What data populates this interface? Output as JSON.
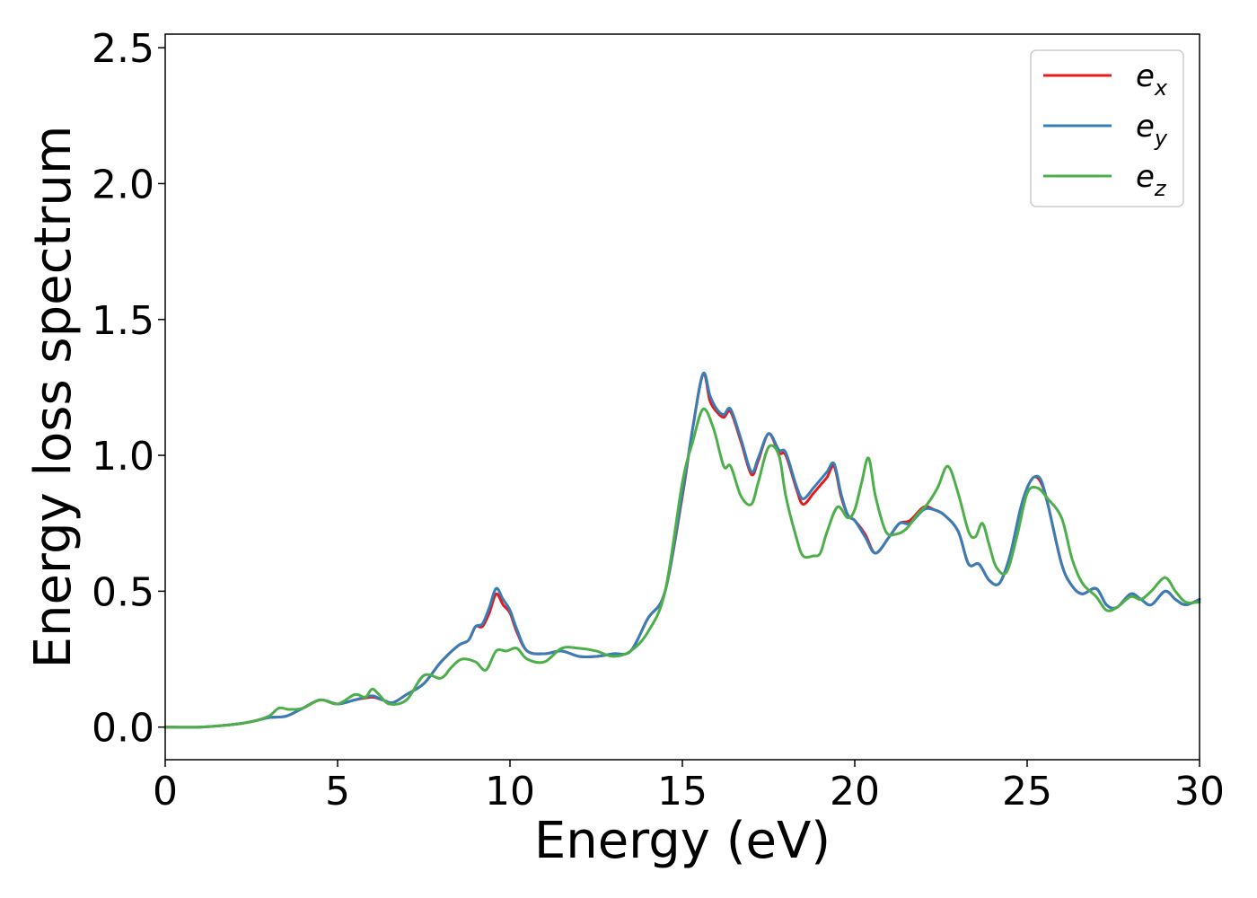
{
  "chart_data": {
    "type": "line",
    "title": "",
    "xlabel": "Energy (eV)",
    "ylabel": "Energy loss spectrum",
    "xlim": [
      0,
      30
    ],
    "ylim": [
      -0.12,
      2.55
    ],
    "xticks": [
      0,
      5,
      10,
      15,
      20,
      25,
      30
    ],
    "yticks": [
      0.0,
      0.5,
      1.0,
      1.5,
      2.0,
      2.5
    ],
    "xtick_labels": [
      "0",
      "5",
      "10",
      "15",
      "20",
      "25",
      "30"
    ],
    "ytick_labels": [
      "0.0",
      "0.5",
      "1.0",
      "1.5",
      "2.0",
      "2.5"
    ],
    "grid": false,
    "legend_position": "top-right",
    "series": [
      {
        "name": "e_x",
        "legend_base": "e",
        "legend_sub": "x",
        "color": "#e41a1c",
        "x": [
          0,
          1,
          2,
          2.5,
          3,
          3.5,
          4,
          4.5,
          5,
          5.5,
          6,
          6.3,
          6.6,
          7,
          7.5,
          8,
          8.5,
          8.8,
          9,
          9.2,
          9.4,
          9.6,
          9.8,
          10,
          10.2,
          10.5,
          11,
          11.5,
          12,
          12.5,
          13,
          13.5,
          14,
          14.5,
          15,
          15.3,
          15.6,
          15.8,
          16,
          16.2,
          16.4,
          16.7,
          17,
          17.2,
          17.5,
          17.8,
          18,
          18.3,
          18.5,
          18.8,
          19,
          19.2,
          19.4,
          19.6,
          19.8,
          20,
          20.3,
          20.6,
          21,
          21.3,
          21.6,
          22,
          22.3,
          22.6,
          23,
          23.3,
          23.6,
          23.9,
          24.2,
          24.5,
          24.8,
          25,
          25.2,
          25.4,
          25.6,
          26,
          26.3,
          26.6,
          27,
          27.3,
          27.6,
          28,
          28.3,
          28.6,
          29,
          29.3,
          29.6,
          30
        ],
        "y": [
          0,
          0,
          0.01,
          0.02,
          0.035,
          0.04,
          0.07,
          0.1,
          0.085,
          0.1,
          0.11,
          0.1,
          0.09,
          0.12,
          0.16,
          0.24,
          0.3,
          0.32,
          0.37,
          0.37,
          0.42,
          0.49,
          0.45,
          0.42,
          0.35,
          0.28,
          0.27,
          0.28,
          0.26,
          0.26,
          0.27,
          0.28,
          0.4,
          0.5,
          0.85,
          1.1,
          1.3,
          1.2,
          1.16,
          1.14,
          1.16,
          1.05,
          0.93,
          0.98,
          1.08,
          1.01,
          1.0,
          0.88,
          0.82,
          0.86,
          0.89,
          0.92,
          0.96,
          0.85,
          0.78,
          0.76,
          0.71,
          0.64,
          0.7,
          0.75,
          0.76,
          0.81,
          0.8,
          0.78,
          0.72,
          0.6,
          0.6,
          0.54,
          0.53,
          0.63,
          0.8,
          0.88,
          0.92,
          0.9,
          0.82,
          0.6,
          0.52,
          0.49,
          0.51,
          0.45,
          0.44,
          0.49,
          0.47,
          0.45,
          0.5,
          0.47,
          0.45,
          0.47
        ]
      },
      {
        "name": "e_y",
        "legend_base": "e",
        "legend_sub": "y",
        "color": "#377eb8",
        "x": [
          0,
          1,
          2,
          2.5,
          3,
          3.5,
          4,
          4.5,
          5,
          5.5,
          6,
          6.3,
          6.6,
          7,
          7.5,
          8,
          8.5,
          8.8,
          9,
          9.2,
          9.4,
          9.6,
          9.8,
          10,
          10.2,
          10.5,
          11,
          11.5,
          12,
          12.5,
          13,
          13.5,
          14,
          14.5,
          15,
          15.3,
          15.6,
          15.8,
          16,
          16.2,
          16.4,
          16.7,
          17,
          17.2,
          17.5,
          17.8,
          18,
          18.3,
          18.5,
          18.8,
          19,
          19.2,
          19.4,
          19.6,
          19.8,
          20,
          20.3,
          20.6,
          21,
          21.3,
          21.6,
          22,
          22.3,
          22.6,
          23,
          23.3,
          23.6,
          23.9,
          24.2,
          24.5,
          24.8,
          25,
          25.2,
          25.4,
          25.6,
          26,
          26.3,
          26.6,
          27,
          27.3,
          27.6,
          28,
          28.3,
          28.6,
          29,
          29.3,
          29.6,
          30
        ],
        "y": [
          0,
          0,
          0.01,
          0.02,
          0.035,
          0.04,
          0.07,
          0.1,
          0.085,
          0.1,
          0.115,
          0.1,
          0.09,
          0.12,
          0.16,
          0.24,
          0.3,
          0.32,
          0.37,
          0.38,
          0.44,
          0.51,
          0.47,
          0.43,
          0.36,
          0.28,
          0.27,
          0.28,
          0.26,
          0.26,
          0.27,
          0.28,
          0.4,
          0.5,
          0.86,
          1.1,
          1.3,
          1.22,
          1.17,
          1.15,
          1.17,
          1.06,
          0.94,
          0.99,
          1.08,
          1.02,
          1.01,
          0.89,
          0.84,
          0.88,
          0.91,
          0.94,
          0.97,
          0.86,
          0.78,
          0.76,
          0.7,
          0.64,
          0.7,
          0.75,
          0.75,
          0.8,
          0.8,
          0.78,
          0.72,
          0.6,
          0.6,
          0.54,
          0.53,
          0.63,
          0.8,
          0.88,
          0.92,
          0.91,
          0.82,
          0.6,
          0.52,
          0.49,
          0.51,
          0.45,
          0.44,
          0.49,
          0.47,
          0.45,
          0.5,
          0.47,
          0.45,
          0.47
        ]
      },
      {
        "name": "e_z",
        "legend_base": "e",
        "legend_sub": "z",
        "color": "#4daf4a",
        "x": [
          0,
          1,
          2,
          2.5,
          3,
          3.3,
          3.6,
          4,
          4.5,
          5,
          5.5,
          5.8,
          6,
          6.2,
          6.5,
          7,
          7.5,
          8,
          8.3,
          8.6,
          9,
          9.3,
          9.6,
          9.9,
          10.2,
          10.5,
          11,
          11.5,
          12,
          12.5,
          13,
          13.5,
          14,
          14.5,
          15,
          15.3,
          15.6,
          15.9,
          16.2,
          16.4,
          16.7,
          17,
          17.2,
          17.5,
          17.8,
          18,
          18.3,
          18.5,
          18.8,
          19,
          19.2,
          19.5,
          19.8,
          20,
          20.2,
          20.4,
          20.6,
          20.9,
          21.2,
          21.5,
          21.8,
          22.1,
          22.4,
          22.7,
          23,
          23.3,
          23.5,
          23.7,
          23.9,
          24.1,
          24.4,
          24.7,
          25,
          25.3,
          25.6,
          26,
          26.3,
          26.6,
          27,
          27.3,
          27.6,
          28,
          28.3,
          28.6,
          29,
          29.3,
          29.6,
          30
        ],
        "y": [
          0,
          0,
          0.01,
          0.02,
          0.04,
          0.07,
          0.065,
          0.07,
          0.1,
          0.085,
          0.12,
          0.11,
          0.14,
          0.12,
          0.085,
          0.1,
          0.19,
          0.18,
          0.22,
          0.25,
          0.24,
          0.21,
          0.28,
          0.28,
          0.29,
          0.25,
          0.24,
          0.29,
          0.29,
          0.28,
          0.26,
          0.28,
          0.35,
          0.5,
          0.9,
          1.05,
          1.17,
          1.1,
          0.96,
          0.96,
          0.85,
          0.82,
          0.9,
          1.03,
          1.0,
          0.85,
          0.7,
          0.63,
          0.63,
          0.64,
          0.72,
          0.81,
          0.77,
          0.8,
          0.9,
          0.99,
          0.85,
          0.72,
          0.71,
          0.73,
          0.78,
          0.82,
          0.88,
          0.96,
          0.86,
          0.72,
          0.7,
          0.75,
          0.67,
          0.59,
          0.57,
          0.7,
          0.86,
          0.88,
          0.84,
          0.77,
          0.62,
          0.53,
          0.48,
          0.43,
          0.44,
          0.48,
          0.47,
          0.5,
          0.55,
          0.5,
          0.46,
          0.46
        ]
      }
    ]
  }
}
